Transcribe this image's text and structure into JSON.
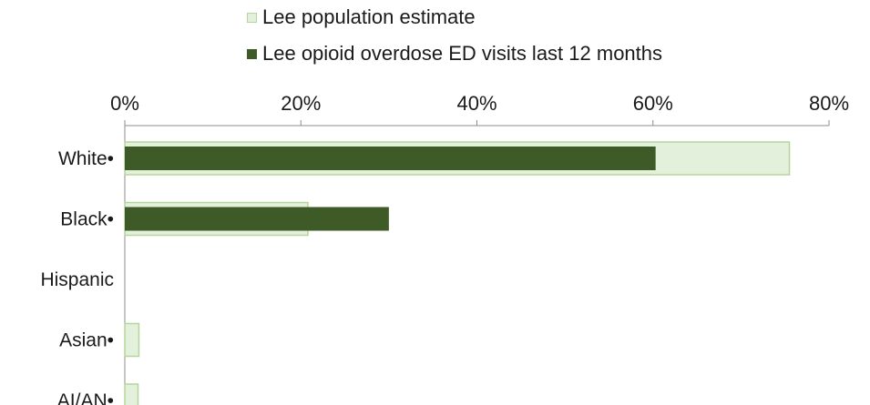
{
  "chart_data": {
    "type": "bar",
    "orientation": "horizontal",
    "title": "",
    "xlabel": "",
    "ylabel": "",
    "categories": [
      "White•",
      "Black•",
      "Hispanic",
      "Asian•",
      "AI/AN•"
    ],
    "series": [
      {
        "name": "Lee population estimate",
        "values": [
          75.5,
          20.8,
          0,
          1.6,
          1.5
        ],
        "color": "#e3f0dc",
        "stroke": "#b6d59c"
      },
      {
        "name": "Lee opioid overdose ED visits last 12 months",
        "values": [
          60.3,
          30.0,
          0,
          0,
          0
        ],
        "color": "#3e5a26"
      }
    ],
    "xlim": [
      0,
      80
    ],
    "x_ticks": [
      "0%",
      "20%",
      "40%",
      "60%",
      "80%"
    ],
    "x_tick_values": [
      0,
      20,
      40,
      60,
      80
    ],
    "axis_position": "top",
    "legend_position": "top",
    "grid": false
  }
}
